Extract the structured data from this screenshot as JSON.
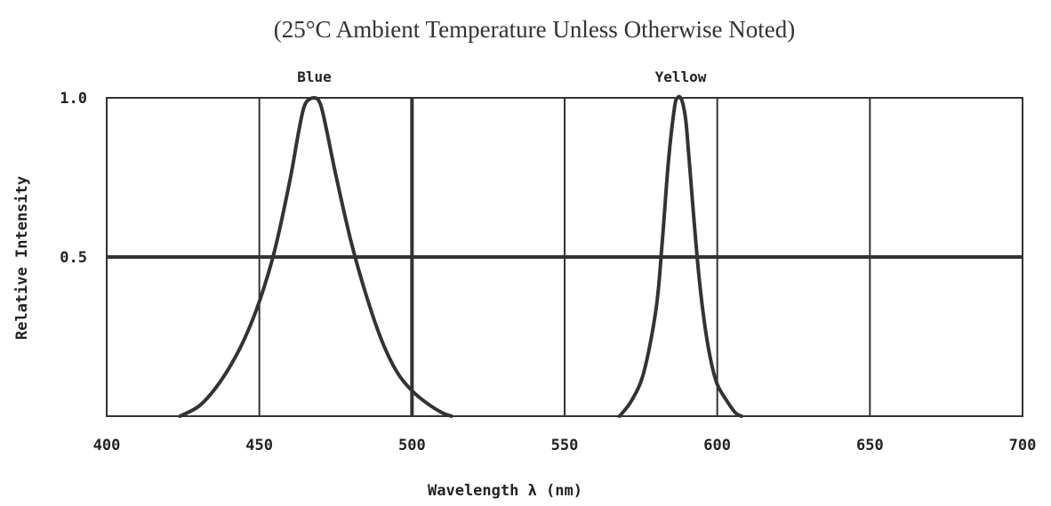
{
  "header": {
    "subtitle": "(25°C Ambient Temperature Unless Otherwise Noted)"
  },
  "chart_data": {
    "type": "line",
    "subtitle": "(25°C Ambient Temperature Unless Otherwise Noted)",
    "xlabel": "Wavelength λ (nm)",
    "ylabel": "Relative Intensity",
    "xlim": [
      400,
      700
    ],
    "ylim": [
      0,
      1.0
    ],
    "x_ticks": [
      400,
      450,
      500,
      550,
      600,
      650,
      700
    ],
    "x_tick_labels": [
      "400",
      "450",
      "500",
      "550",
      "600",
      "650",
      "700"
    ],
    "y_ticks": [
      0.5,
      1.0
    ],
    "y_tick_labels": [
      "0.5",
      "1.0"
    ],
    "grid": true,
    "line_color": "#333333",
    "grid_color": "#333333",
    "series": [
      {
        "name": "Blue",
        "x": [
          424,
          430,
          435,
          440,
          445,
          450,
          455,
          460,
          463,
          465,
          468,
          470,
          472,
          475,
          480,
          485,
          490,
          495,
          500,
          505,
          510,
          513
        ],
        "y": [
          0.0,
          0.03,
          0.08,
          0.15,
          0.24,
          0.36,
          0.52,
          0.74,
          0.9,
          0.98,
          1.0,
          0.98,
          0.9,
          0.76,
          0.55,
          0.38,
          0.24,
          0.14,
          0.08,
          0.04,
          0.01,
          0.0
        ]
      },
      {
        "name": "Yellow",
        "x": [
          568,
          572,
          576,
          580,
          582,
          584,
          586,
          587,
          588,
          589,
          590,
          592,
          594,
          596,
          598,
          600,
          603,
          606,
          608
        ],
        "y": [
          0.0,
          0.05,
          0.14,
          0.34,
          0.55,
          0.8,
          0.97,
          1.0,
          1.0,
          0.97,
          0.9,
          0.66,
          0.44,
          0.28,
          0.17,
          0.1,
          0.05,
          0.01,
          0.0
        ]
      }
    ],
    "peak_labels": [
      {
        "text": "Blue",
        "x": 468
      },
      {
        "text": "Yellow",
        "x": 588
      }
    ]
  }
}
